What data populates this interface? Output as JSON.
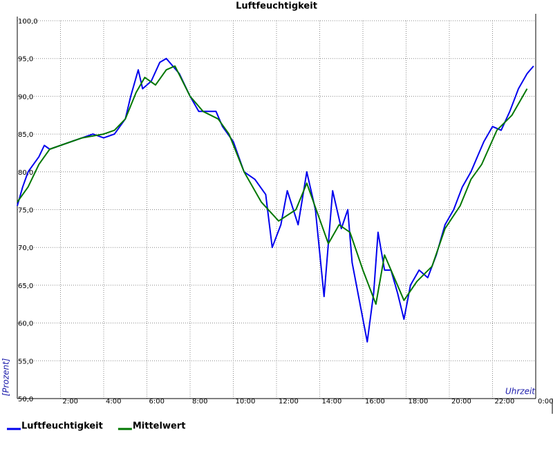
{
  "chart_data": {
    "type": "line",
    "title": "Luftfeuchtigkeit",
    "y_label": "[Prozent]",
    "x_label": "Uhrzeit",
    "xlim": [
      0,
      24
    ],
    "ylim": [
      50,
      100
    ],
    "xticks": [
      {
        "value": 2,
        "label": "2:00"
      },
      {
        "value": 4,
        "label": "4:00"
      },
      {
        "value": 6,
        "label": "6:00"
      },
      {
        "value": 8,
        "label": "8:00"
      },
      {
        "value": 10,
        "label": "10:00"
      },
      {
        "value": 12,
        "label": "12:00"
      },
      {
        "value": 14,
        "label": "14:00"
      },
      {
        "value": 16,
        "label": "16:00"
      },
      {
        "value": 18,
        "label": "18:00"
      },
      {
        "value": 20,
        "label": "20:00"
      },
      {
        "value": 22,
        "label": "22:00"
      },
      {
        "value": 24,
        "label": "0:00"
      }
    ],
    "yticks": [
      {
        "value": 50,
        "label": "50,0"
      },
      {
        "value": 55,
        "label": "55,0"
      },
      {
        "value": 60,
        "label": "60,0"
      },
      {
        "value": 65,
        "label": "65,0"
      },
      {
        "value": 70,
        "label": "70,0"
      },
      {
        "value": 75,
        "label": "75,0"
      },
      {
        "value": 80,
        "label": "80,0"
      },
      {
        "value": 85,
        "label": "85,0"
      },
      {
        "value": 90,
        "label": "90,0"
      },
      {
        "value": 95,
        "label": "95,0"
      },
      {
        "value": 100,
        "label": "100,0"
      }
    ],
    "grid": true,
    "legend": "bottom-left",
    "series": [
      {
        "name": "Luftfeuchtigkeit",
        "color": "#0000ee",
        "x": [
          0,
          0.25,
          0.5,
          0.75,
          1,
          1.25,
          1.5,
          2,
          2.5,
          3,
          3.5,
          4,
          4.5,
          5,
          5.25,
          5.6,
          5.8,
          6.2,
          6.6,
          6.9,
          7.5,
          8,
          8.4,
          9.2,
          9.5,
          10,
          10.5,
          11,
          11.5,
          11.8,
          12.2,
          12.5,
          13,
          13.4,
          13.8,
          14.2,
          14.6,
          15,
          15.3,
          15.5,
          15.9,
          16.2,
          16.5,
          16.7,
          17,
          17.3,
          17.6,
          17.9,
          18.2,
          18.6,
          19,
          19.4,
          19.8,
          20.2,
          20.6,
          21,
          21.3,
          21.6,
          22,
          22.4,
          22.8,
          23.2,
          23.6,
          23.9
        ],
        "values": [
          75.5,
          78,
          80,
          81,
          82,
          83.5,
          83,
          83.5,
          84,
          84.5,
          85,
          84.5,
          85,
          87,
          90,
          93.5,
          91,
          92,
          94.5,
          95,
          93,
          90,
          88,
          88,
          86,
          84,
          80,
          79,
          77,
          70,
          73,
          77.5,
          73,
          80,
          75,
          63.5,
          77.5,
          72.5,
          75,
          68,
          62,
          57.5,
          64,
          72,
          67,
          67,
          64,
          60.5,
          65,
          67,
          66,
          69,
          73,
          75,
          78,
          80,
          82,
          84,
          86,
          85.5,
          88,
          91,
          93,
          94
        ]
      },
      {
        "name": "Mittelwert",
        "color": "#007700",
        "x": [
          0,
          0.5,
          1,
          1.5,
          2,
          3,
          4,
          4.5,
          5,
          5.5,
          5.9,
          6.4,
          6.9,
          7.3,
          8,
          8.6,
          9.3,
          9.8,
          10.5,
          11.3,
          12.1,
          12.9,
          13.4,
          14.4,
          14.9,
          15.4,
          16,
          16.6,
          17,
          17.9,
          18.5,
          19.2,
          19.8,
          20.5,
          21,
          21.5,
          22.2,
          22.9,
          23.6
        ],
        "values": [
          76,
          78,
          81,
          83,
          83.5,
          84.5,
          85,
          85.5,
          87,
          90.5,
          92.5,
          91.5,
          93.5,
          94,
          90,
          88,
          87,
          85,
          80,
          76,
          73.5,
          75,
          78.5,
          70.5,
          73,
          72,
          67,
          62.5,
          69,
          63,
          65.5,
          67.5,
          72.5,
          75.5,
          79,
          81,
          85.5,
          87.5,
          91
        ]
      }
    ]
  }
}
